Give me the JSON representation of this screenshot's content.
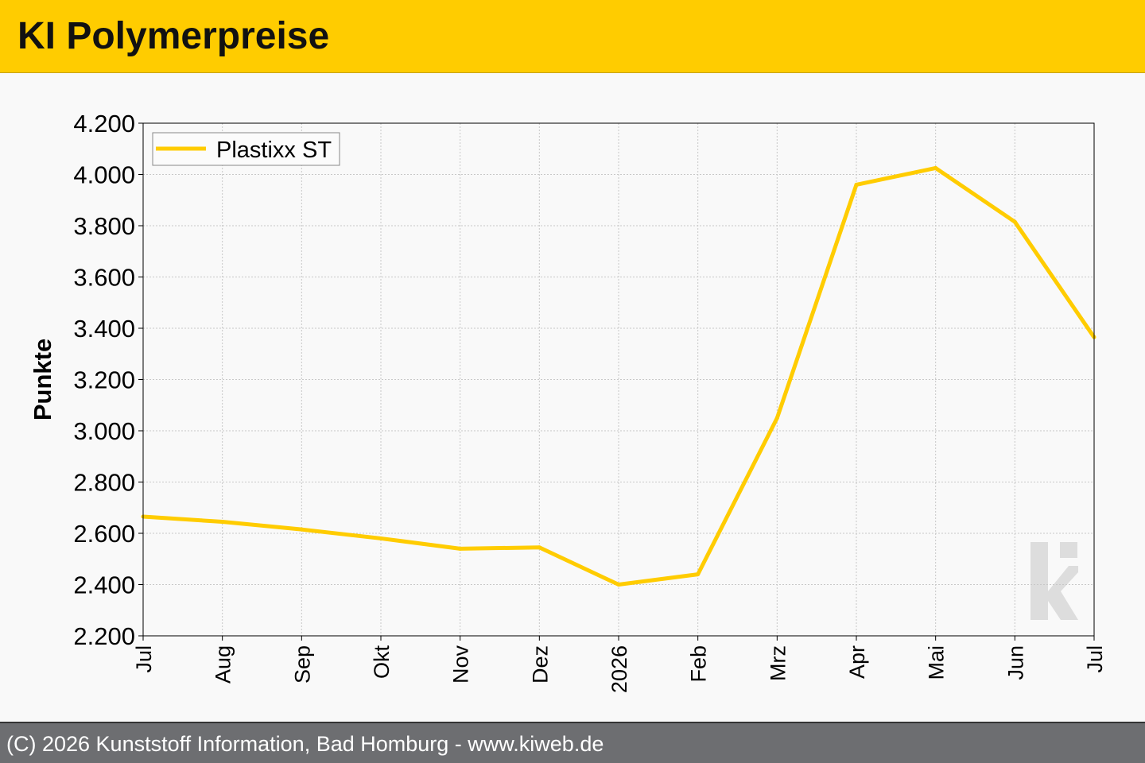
{
  "header": {
    "title": "KI Polymerpreise"
  },
  "footer": {
    "text": "(C) 2026 Kunststoff Information, Bad Homburg - www.kiweb.de"
  },
  "colors": {
    "header_bg": "#ffcc00",
    "series": "#ffcc00",
    "footer_bg": "#6d6e71",
    "watermark": "#dddddd"
  },
  "watermark_icon": "ki-logo",
  "chart_data": {
    "type": "line",
    "ylabel": "Punkte",
    "xlabel": "",
    "ylim": [
      2200,
      4200
    ],
    "yticks": [
      "2.200",
      "2.400",
      "2.600",
      "2.800",
      "3.000",
      "3.200",
      "3.400",
      "3.600",
      "3.800",
      "4.000",
      "4.200"
    ],
    "ytick_values": [
      2200,
      2400,
      2600,
      2800,
      3000,
      3200,
      3400,
      3600,
      3800,
      4000,
      4200
    ],
    "categories": [
      "Jul",
      "Aug",
      "Sep",
      "Okt",
      "Nov",
      "Dez",
      "2026",
      "Feb",
      "Mrz",
      "Apr",
      "Mai",
      "Jun",
      "Jul"
    ],
    "grid": true,
    "legend_position": "top-left",
    "series": [
      {
        "name": "Plastixx ST",
        "values": [
          2665,
          2645,
          2615,
          2580,
          2540,
          2545,
          2400,
          2440,
          3050,
          3960,
          4025,
          3815,
          3365
        ]
      }
    ]
  }
}
